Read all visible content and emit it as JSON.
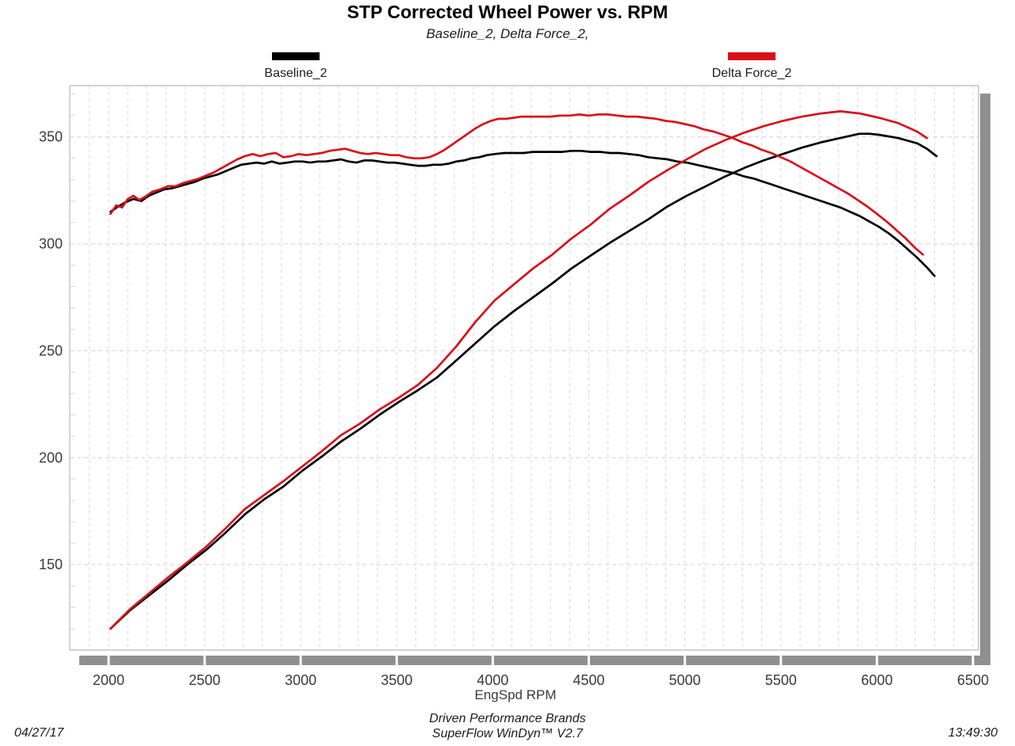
{
  "header": {
    "title": "STP Corrected Wheel Power vs. RPM",
    "subtitle": "Baseline_2, Delta Force_2,"
  },
  "legend": [
    {
      "label": "Baseline_2",
      "color": "#000000"
    },
    {
      "label": "Delta Force_2",
      "color": "#d8101a"
    }
  ],
  "xaxis_label": "EngSpd RPM",
  "footer": {
    "date": "04/27/17",
    "brand_line1": "Driven Performance Brands",
    "brand_line2": "SuperFlow WinDyn™ V2.7",
    "time": "13:49:30"
  },
  "colors": {
    "baseline": "#000000",
    "delta": "#d8101a",
    "grid_vertical": "#dcd7d7",
    "grid_horizontal": "#e6c9c9",
    "frame": "#b5b5b5",
    "shadow": "#8f8f8f",
    "tick_text": "#3a3a3a"
  },
  "chart_data": {
    "type": "line",
    "title": "STP Corrected Wheel Power vs. RPM",
    "subtitle": "Baseline_2, Delta Force_2,",
    "xlabel": "EngSpd RPM",
    "ylabel": "",
    "xlim": [
      1798,
      6529
    ],
    "ylim": [
      110,
      374
    ],
    "xticks": [
      2000,
      2500,
      3000,
      3500,
      4000,
      4500,
      5000,
      5500,
      6000,
      6500
    ],
    "yticks": [
      150,
      200,
      250,
      300,
      350
    ],
    "x_minor_step": 100,
    "y_minor_step": 10,
    "grid": "dashed",
    "legend_position": "top",
    "series": [
      {
        "name": "Baseline_2 (torque curve)",
        "color": "#000000",
        "points": [
          [
            2010,
            315
          ],
          [
            2050,
            317.5
          ],
          [
            2090,
            319.5
          ],
          [
            2130,
            321
          ],
          [
            2170,
            320
          ],
          [
            2210,
            322.5
          ],
          [
            2250,
            324
          ],
          [
            2290,
            325.5
          ],
          [
            2330,
            326
          ],
          [
            2370,
            327
          ],
          [
            2410,
            328
          ],
          [
            2450,
            329
          ],
          [
            2490,
            330.5
          ],
          [
            2530,
            331.5
          ],
          [
            2570,
            332.5
          ],
          [
            2610,
            334
          ],
          [
            2650,
            335.5
          ],
          [
            2690,
            337
          ],
          [
            2730,
            337.5
          ],
          [
            2770,
            338
          ],
          [
            2810,
            337.5
          ],
          [
            2850,
            338.5
          ],
          [
            2890,
            337.5
          ],
          [
            2930,
            338
          ],
          [
            2970,
            338.5
          ],
          [
            3010,
            338.5
          ],
          [
            3050,
            338
          ],
          [
            3090,
            338.5
          ],
          [
            3130,
            338.5
          ],
          [
            3170,
            339
          ],
          [
            3210,
            339.5
          ],
          [
            3250,
            338.5
          ],
          [
            3290,
            338
          ],
          [
            3330,
            339
          ],
          [
            3370,
            339
          ],
          [
            3410,
            338.5
          ],
          [
            3450,
            338
          ],
          [
            3490,
            338
          ],
          [
            3530,
            337.5
          ],
          [
            3570,
            337
          ],
          [
            3610,
            336.5
          ],
          [
            3650,
            336.5
          ],
          [
            3690,
            337
          ],
          [
            3730,
            337
          ],
          [
            3770,
            337.5
          ],
          [
            3810,
            338.5
          ],
          [
            3850,
            339
          ],
          [
            3890,
            340
          ],
          [
            3930,
            340.5
          ],
          [
            3970,
            341.5
          ],
          [
            4010,
            342
          ],
          [
            4060,
            342.5
          ],
          [
            4110,
            342.5
          ],
          [
            4160,
            342.5
          ],
          [
            4210,
            343
          ],
          [
            4260,
            343
          ],
          [
            4310,
            343
          ],
          [
            4360,
            343
          ],
          [
            4410,
            343.5
          ],
          [
            4460,
            343.5
          ],
          [
            4510,
            343
          ],
          [
            4560,
            343
          ],
          [
            4610,
            342.5
          ],
          [
            4660,
            342.5
          ],
          [
            4710,
            342
          ],
          [
            4760,
            341.5
          ],
          [
            4810,
            340.5
          ],
          [
            4860,
            340
          ],
          [
            4910,
            339.5
          ],
          [
            4960,
            338.5
          ],
          [
            5010,
            338
          ],
          [
            5060,
            337
          ],
          [
            5110,
            336
          ],
          [
            5160,
            335
          ],
          [
            5210,
            334
          ],
          [
            5260,
            333
          ],
          [
            5310,
            331.5
          ],
          [
            5360,
            330.5
          ],
          [
            5410,
            329
          ],
          [
            5460,
            327.5
          ],
          [
            5510,
            326
          ],
          [
            5560,
            324.5
          ],
          [
            5610,
            323
          ],
          [
            5660,
            321.5
          ],
          [
            5710,
            320
          ],
          [
            5760,
            318.5
          ],
          [
            5810,
            317
          ],
          [
            5860,
            315
          ],
          [
            5910,
            313
          ],
          [
            5960,
            310.5
          ],
          [
            6010,
            308
          ],
          [
            6060,
            305
          ],
          [
            6110,
            301.5
          ],
          [
            6160,
            297.5
          ],
          [
            6210,
            293.5
          ],
          [
            6260,
            289
          ],
          [
            6300,
            285
          ]
        ]
      },
      {
        "name": "Baseline_2 (power curve)",
        "color": "#000000",
        "points": [
          [
            2010,
            120
          ],
          [
            2110,
            128.5
          ],
          [
            2210,
            135.5
          ],
          [
            2310,
            142.5
          ],
          [
            2410,
            150
          ],
          [
            2510,
            157
          ],
          [
            2610,
            165
          ],
          [
            2710,
            173.5
          ],
          [
            2810,
            180.5
          ],
          [
            2910,
            186.5
          ],
          [
            3010,
            194
          ],
          [
            3110,
            200.5
          ],
          [
            3210,
            207.5
          ],
          [
            3310,
            213.5
          ],
          [
            3410,
            220
          ],
          [
            3510,
            226
          ],
          [
            3610,
            231.5
          ],
          [
            3710,
            237.5
          ],
          [
            3810,
            245.5
          ],
          [
            3910,
            253.5
          ],
          [
            4010,
            261.5
          ],
          [
            4110,
            268.5
          ],
          [
            4210,
            275
          ],
          [
            4310,
            281.5
          ],
          [
            4410,
            288.5
          ],
          [
            4510,
            294.5
          ],
          [
            4610,
            300.5
          ],
          [
            4710,
            306
          ],
          [
            4810,
            311.5
          ],
          [
            4910,
            317.5
          ],
          [
            5010,
            322.5
          ],
          [
            5110,
            327
          ],
          [
            5210,
            331.5
          ],
          [
            5310,
            335.5
          ],
          [
            5410,
            339
          ],
          [
            5510,
            342
          ],
          [
            5610,
            345
          ],
          [
            5710,
            347.5
          ],
          [
            5810,
            349.5
          ],
          [
            5910,
            351.5
          ],
          [
            5960,
            351.5
          ],
          [
            6010,
            351
          ],
          [
            6110,
            349.5
          ],
          [
            6210,
            347
          ],
          [
            6260,
            344.5
          ],
          [
            6310,
            341
          ]
        ]
      },
      {
        "name": "Delta Force_2 (torque curve)",
        "color": "#d8101a",
        "points": [
          [
            2010,
            314
          ],
          [
            2040,
            318
          ],
          [
            2070,
            317
          ],
          [
            2100,
            321
          ],
          [
            2130,
            322.5
          ],
          [
            2160,
            320.5
          ],
          [
            2190,
            322
          ],
          [
            2230,
            324.5
          ],
          [
            2270,
            325.5
          ],
          [
            2310,
            327
          ],
          [
            2350,
            327
          ],
          [
            2390,
            328.5
          ],
          [
            2430,
            329.5
          ],
          [
            2470,
            330.5
          ],
          [
            2510,
            332
          ],
          [
            2550,
            333.5
          ],
          [
            2590,
            335.5
          ],
          [
            2630,
            337.5
          ],
          [
            2670,
            339.5
          ],
          [
            2710,
            341
          ],
          [
            2750,
            342
          ],
          [
            2790,
            341
          ],
          [
            2830,
            342
          ],
          [
            2870,
            342.5
          ],
          [
            2910,
            340.5
          ],
          [
            2950,
            341
          ],
          [
            2990,
            342
          ],
          [
            3030,
            341.5
          ],
          [
            3070,
            342
          ],
          [
            3110,
            342.5
          ],
          [
            3150,
            343.5
          ],
          [
            3190,
            344
          ],
          [
            3230,
            344.5
          ],
          [
            3270,
            343.5
          ],
          [
            3310,
            342.5
          ],
          [
            3350,
            342
          ],
          [
            3390,
            342.5
          ],
          [
            3430,
            342
          ],
          [
            3470,
            341.5
          ],
          [
            3510,
            341.5
          ],
          [
            3550,
            340.5
          ],
          [
            3590,
            340
          ],
          [
            3630,
            340
          ],
          [
            3670,
            340.5
          ],
          [
            3710,
            342
          ],
          [
            3750,
            344
          ],
          [
            3790,
            346.5
          ],
          [
            3830,
            349
          ],
          [
            3870,
            351.5
          ],
          [
            3910,
            354
          ],
          [
            3950,
            356
          ],
          [
            3990,
            357.5
          ],
          [
            4030,
            358.5
          ],
          [
            4070,
            358.5
          ],
          [
            4110,
            359
          ],
          [
            4150,
            359.5
          ],
          [
            4200,
            359.5
          ],
          [
            4250,
            359.5
          ],
          [
            4300,
            359.5
          ],
          [
            4350,
            360
          ],
          [
            4400,
            360
          ],
          [
            4450,
            360.5
          ],
          [
            4500,
            360
          ],
          [
            4550,
            360.5
          ],
          [
            4600,
            360.5
          ],
          [
            4650,
            360
          ],
          [
            4700,
            359.5
          ],
          [
            4750,
            359.5
          ],
          [
            4800,
            359
          ],
          [
            4850,
            358.5
          ],
          [
            4900,
            357.5
          ],
          [
            4950,
            357
          ],
          [
            5000,
            356
          ],
          [
            5050,
            355
          ],
          [
            5100,
            353.5
          ],
          [
            5150,
            352.5
          ],
          [
            5200,
            351
          ],
          [
            5250,
            349.5
          ],
          [
            5300,
            347.5
          ],
          [
            5350,
            346
          ],
          [
            5400,
            344
          ],
          [
            5450,
            342.5
          ],
          [
            5500,
            340.5
          ],
          [
            5550,
            338.5
          ],
          [
            5600,
            336
          ],
          [
            5650,
            333.5
          ],
          [
            5700,
            331
          ],
          [
            5750,
            328.5
          ],
          [
            5800,
            326
          ],
          [
            5850,
            323.5
          ],
          [
            5900,
            320.5
          ],
          [
            5950,
            317.5
          ],
          [
            6000,
            314
          ],
          [
            6050,
            310.5
          ],
          [
            6100,
            306.5
          ],
          [
            6150,
            302.5
          ],
          [
            6200,
            298
          ],
          [
            6240,
            295
          ]
        ]
      },
      {
        "name": "Delta Force_2 (power curve)",
        "color": "#d8101a",
        "points": [
          [
            2010,
            120
          ],
          [
            2110,
            129
          ],
          [
            2210,
            136.5
          ],
          [
            2310,
            144
          ],
          [
            2410,
            151
          ],
          [
            2510,
            158.5
          ],
          [
            2610,
            167
          ],
          [
            2710,
            176
          ],
          [
            2810,
            182.5
          ],
          [
            2910,
            189
          ],
          [
            3010,
            196
          ],
          [
            3110,
            203
          ],
          [
            3210,
            210.5
          ],
          [
            3310,
            216
          ],
          [
            3410,
            222.5
          ],
          [
            3510,
            228
          ],
          [
            3610,
            234
          ],
          [
            3710,
            242
          ],
          [
            3810,
            252
          ],
          [
            3910,
            263.5
          ],
          [
            4010,
            273.5
          ],
          [
            4110,
            281
          ],
          [
            4210,
            288.5
          ],
          [
            4310,
            295
          ],
          [
            4410,
            302.5
          ],
          [
            4510,
            309
          ],
          [
            4610,
            316.5
          ],
          [
            4710,
            322.5
          ],
          [
            4810,
            329
          ],
          [
            4910,
            334.5
          ],
          [
            5010,
            339.5
          ],
          [
            5110,
            344.5
          ],
          [
            5210,
            348.5
          ],
          [
            5310,
            352
          ],
          [
            5410,
            355
          ],
          [
            5510,
            357.5
          ],
          [
            5610,
            359.5
          ],
          [
            5710,
            361
          ],
          [
            5810,
            362
          ],
          [
            5910,
            361
          ],
          [
            6010,
            359
          ],
          [
            6110,
            356.5
          ],
          [
            6210,
            352.5
          ],
          [
            6260,
            349.5
          ]
        ]
      }
    ]
  }
}
